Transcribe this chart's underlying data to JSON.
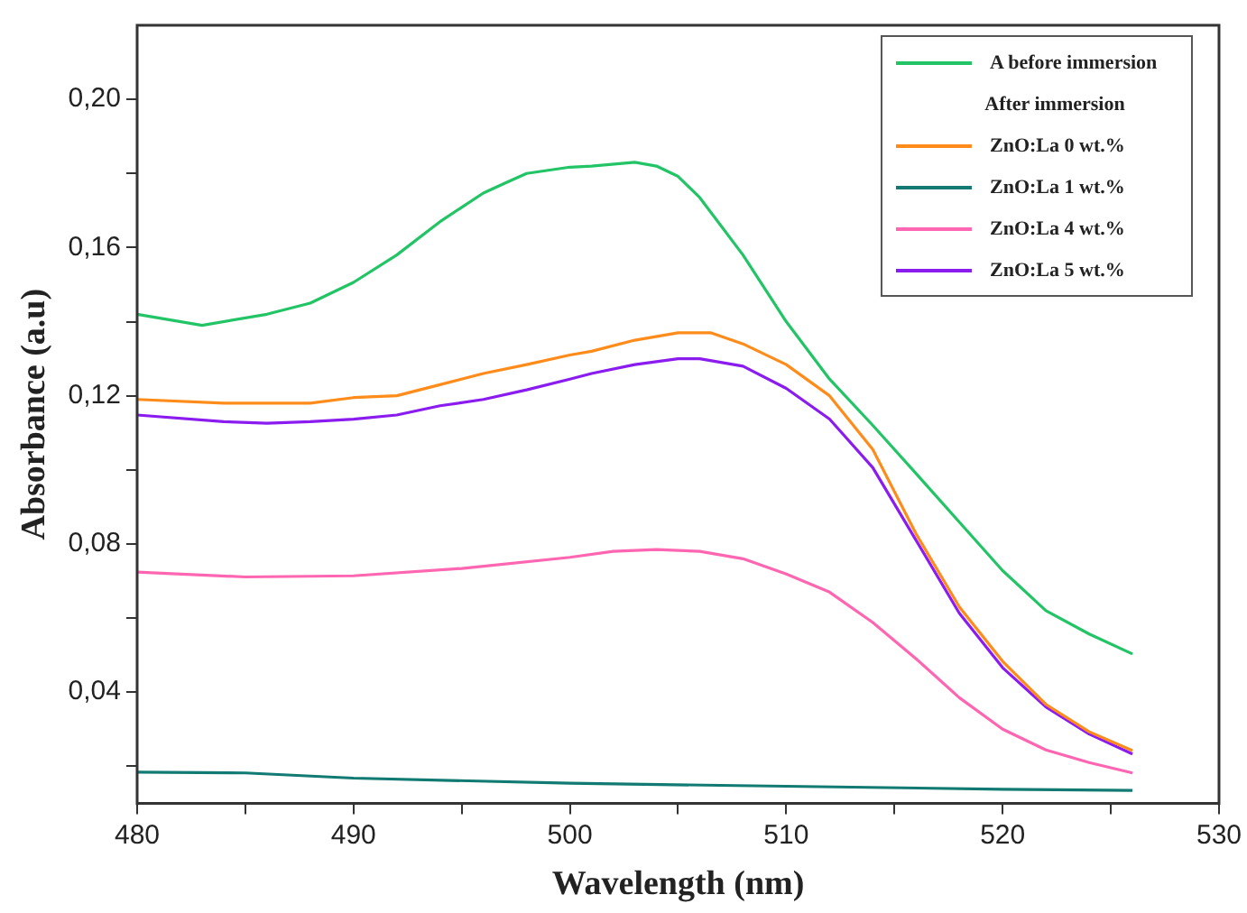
{
  "chart_data": {
    "type": "line",
    "xlabel": "Wavelength (nm)",
    "ylabel": "Absorbance (a.u)",
    "annotations": [
      "After immersion"
    ],
    "legend": "top right",
    "marker": "none",
    "line_style": "solid",
    "xlim": [
      480,
      530
    ],
    "xticks": [
      480,
      {
        "value": 485,
        "label": null
      },
      490,
      {
        "value": 495,
        "label": null
      },
      500,
      {
        "value": 505,
        "label": null
      },
      510,
      {
        "value": 515,
        "label": null
      },
      520,
      {
        "value": 525,
        "label": null
      },
      530
    ],
    "ylim": [
      0.01,
      0.22
    ],
    "yticks": [
      {
        "value": 0.02,
        "label": null
      },
      {
        "value": 0.04,
        "label": "0,04"
      },
      {
        "value": 0.06,
        "label": null
      },
      {
        "value": 0.08,
        "label": "0,08"
      },
      {
        "value": 0.1,
        "label": null
      },
      {
        "value": 0.12,
        "label": "0,12"
      },
      {
        "value": 0.14,
        "label": null
      },
      {
        "value": 0.16,
        "label": "0,16"
      },
      {
        "value": 0.18,
        "label": null
      },
      {
        "value": 0.2,
        "label": "0,20"
      }
    ],
    "series": [
      {
        "name": "A before immersion",
        "color": "#22c466",
        "x": [
          480,
          483,
          486,
          488,
          490,
          492,
          494,
          496,
          497,
          498,
          500,
          501,
          503,
          504,
          505,
          506,
          508,
          510,
          512,
          514,
          516,
          518,
          520,
          522,
          524,
          526
        ],
        "values": [
          0.142,
          0.139,
          0.142,
          0.145,
          0.1506,
          0.158,
          0.167,
          0.1747,
          0.1774,
          0.18,
          0.1817,
          0.182,
          0.183,
          0.182,
          0.1792,
          0.1735,
          0.158,
          0.14,
          0.1245,
          0.112,
          0.099,
          0.0859,
          0.0728,
          0.062,
          0.0557,
          0.0503
        ]
      },
      {
        "name": "ZnO:La 0 wt.%",
        "color": "#ff8c1a",
        "x": [
          480,
          484,
          488,
          490,
          492,
          494,
          496,
          498,
          500,
          501,
          503,
          505,
          506.5,
          508,
          510,
          512,
          514,
          516,
          518,
          520,
          522,
          524,
          526
        ],
        "values": [
          0.119,
          0.118,
          0.118,
          0.1195,
          0.12,
          0.123,
          0.126,
          0.1284,
          0.131,
          0.132,
          0.135,
          0.137,
          0.137,
          0.134,
          0.1284,
          0.12,
          0.1055,
          0.0827,
          0.063,
          0.0483,
          0.0367,
          0.0293,
          0.0242
        ]
      },
      {
        "name": "ZnO:La 1 wt.%",
        "color": "#117a72",
        "x": [
          480,
          485,
          490,
          500,
          510,
          520,
          526
        ],
        "values": [
          0.0184,
          0.0182,
          0.0168,
          0.0154,
          0.0146,
          0.0138,
          0.0135
        ]
      },
      {
        "name": "ZnO:La 4 wt.%",
        "color": "#ff66b2",
        "x": [
          480,
          485,
          490,
          495,
          500,
          502,
          504,
          506,
          508,
          510,
          512,
          514,
          516,
          518,
          520,
          522,
          524,
          526
        ],
        "values": [
          0.0724,
          0.0711,
          0.0714,
          0.0734,
          0.0764,
          0.078,
          0.0785,
          0.078,
          0.076,
          0.0719,
          0.067,
          0.0588,
          0.049,
          0.0385,
          0.03,
          0.0244,
          0.021,
          0.0182
        ]
      },
      {
        "name": "ZnO:La 5 wt.%",
        "color": "#8a1cf0",
        "x": [
          480,
          484,
          486,
          488,
          490,
          492,
          494,
          496,
          498,
          500,
          501,
          503,
          505,
          506,
          508,
          510,
          512,
          514,
          516,
          518,
          520,
          522,
          524,
          526
        ],
        "values": [
          0.1148,
          0.113,
          0.1126,
          0.113,
          0.1137,
          0.1148,
          0.1173,
          0.119,
          0.1216,
          0.1245,
          0.126,
          0.1284,
          0.13,
          0.13,
          0.128,
          0.122,
          0.1137,
          0.1006,
          0.081,
          0.0613,
          0.0466,
          0.036,
          0.0287,
          0.0233
        ]
      }
    ]
  }
}
